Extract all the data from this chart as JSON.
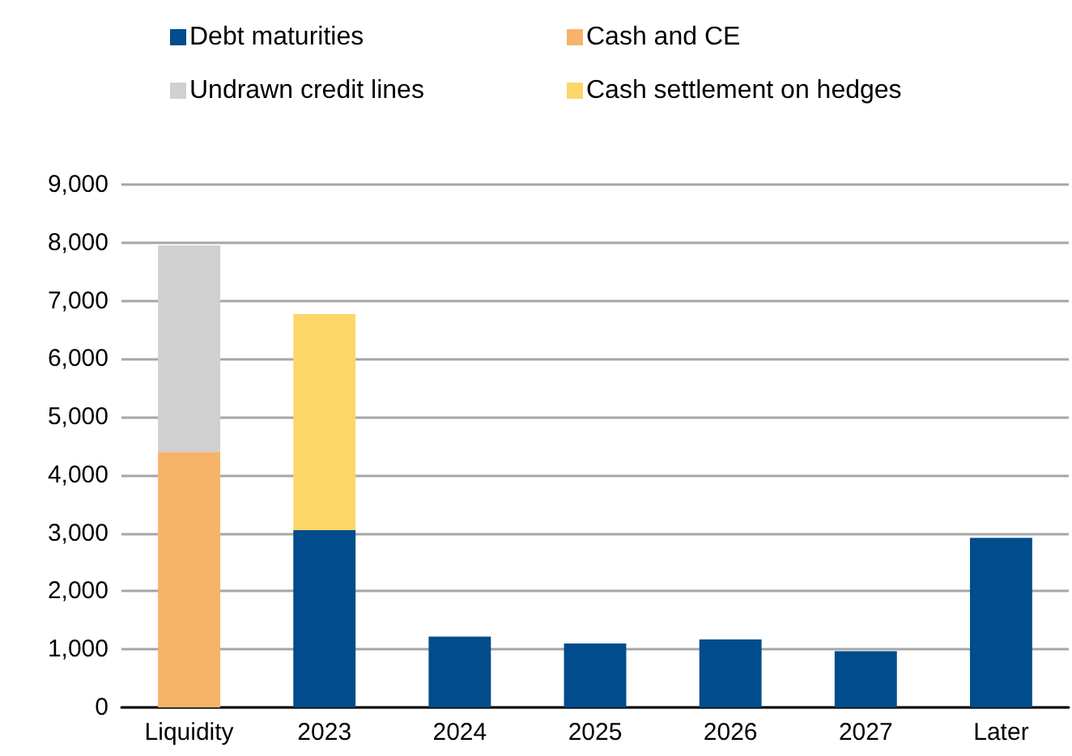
{
  "chart_data": {
    "type": "bar",
    "stacked": true,
    "categories": [
      "Liquidity",
      "2023",
      "2024",
      "2025",
      "2026",
      "2027",
      "Later"
    ],
    "series": [
      {
        "name": "Debt maturities",
        "color": "#004c8c",
        "values": [
          null,
          3050,
          1220,
          1100,
          1170,
          970,
          2920
        ]
      },
      {
        "name": "Cash and CE",
        "color": "#f8b36a",
        "values": [
          4400,
          null,
          null,
          null,
          null,
          null,
          null
        ]
      },
      {
        "name": "Undrawn credit lines",
        "color": "#d0d0d0",
        "values": [
          3550,
          null,
          null,
          null,
          null,
          null,
          null
        ]
      },
      {
        "name": "Cash settlement on hedges",
        "color": "#fdd66a",
        "values": [
          null,
          3720,
          null,
          null,
          null,
          null,
          null
        ]
      }
    ],
    "ylim": [
      0,
      9000
    ],
    "yticks": [
      {
        "value": 0,
        "label": "0"
      },
      {
        "value": 1000,
        "label": "1,000"
      },
      {
        "value": 2000,
        "label": "2,000"
      },
      {
        "value": 3000,
        "label": "3,000"
      },
      {
        "value": 4000,
        "label": "4,000"
      },
      {
        "value": 5000,
        "label": "5,000"
      },
      {
        "value": 6000,
        "label": "6,000"
      },
      {
        "value": 7000,
        "label": "7,000"
      },
      {
        "value": 8000,
        "label": "8,000"
      },
      {
        "value": 9000,
        "label": "9,000"
      }
    ],
    "grid": "y",
    "legend": "top"
  }
}
